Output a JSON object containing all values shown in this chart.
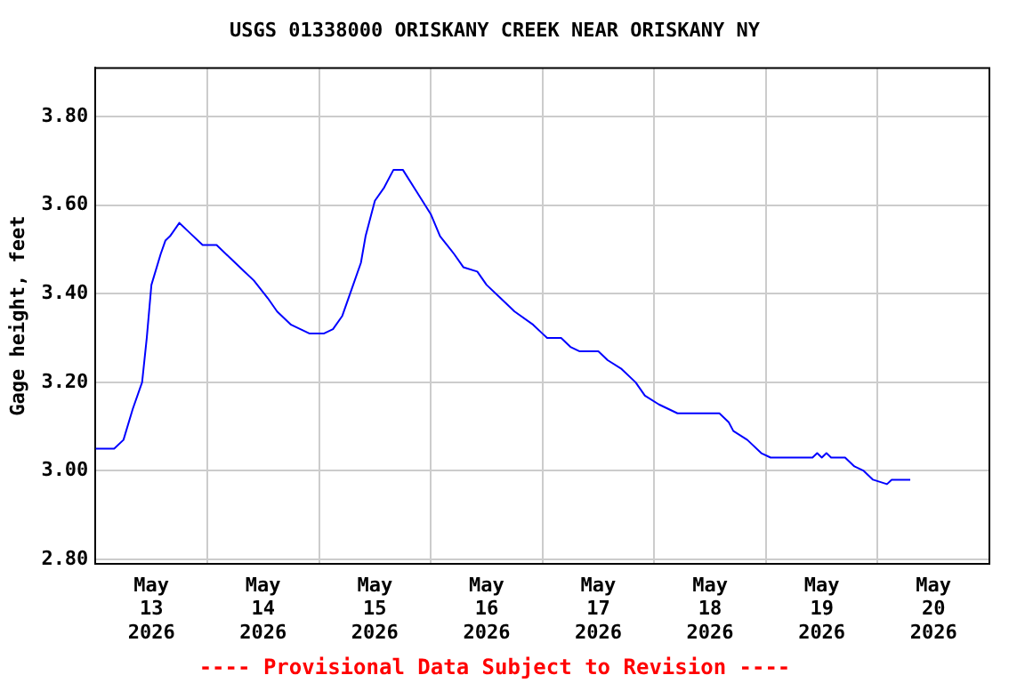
{
  "chart_data": {
    "type": "line",
    "title": "USGS 01338000 ORISKANY CREEK NEAR ORISKANY NY",
    "ylabel": "Gage height, feet",
    "annotations": [
      "---- Provisional Data Subject to Revision ----"
    ],
    "x": [
      "2026-05-13T00:00",
      "2026-05-13T04:00",
      "2026-05-13T06:00",
      "2026-05-13T08:00",
      "2026-05-13T10:00",
      "2026-05-13T11:00",
      "2026-05-13T12:00",
      "2026-05-13T14:00",
      "2026-05-13T15:00",
      "2026-05-13T16:00",
      "2026-05-13T18:00",
      "2026-05-13T20:00",
      "2026-05-13T23:00",
      "2026-05-14T02:00",
      "2026-05-14T05:00",
      "2026-05-14T08:00",
      "2026-05-14T10:00",
      "2026-05-14T13:00",
      "2026-05-14T15:00",
      "2026-05-14T18:00",
      "2026-05-14T20:00",
      "2026-05-14T22:00",
      "2026-05-15T01:00",
      "2026-05-15T03:00",
      "2026-05-15T05:00",
      "2026-05-15T07:00",
      "2026-05-15T09:00",
      "2026-05-15T10:00",
      "2026-05-15T12:00",
      "2026-05-15T14:00",
      "2026-05-15T16:00",
      "2026-05-15T18:00",
      "2026-05-15T21:00",
      "2026-05-16T00:00",
      "2026-05-16T02:00",
      "2026-05-16T05:00",
      "2026-05-16T07:00",
      "2026-05-16T10:00",
      "2026-05-16T12:00",
      "2026-05-16T15:00",
      "2026-05-16T18:00",
      "2026-05-16T22:00",
      "2026-05-17T00:00",
      "2026-05-17T01:00",
      "2026-05-17T04:00",
      "2026-05-17T06:00",
      "2026-05-17T08:00",
      "2026-05-17T12:00",
      "2026-05-17T14:00",
      "2026-05-17T17:00",
      "2026-05-17T20:00",
      "2026-05-17T22:00",
      "2026-05-18T01:00",
      "2026-05-18T03:00",
      "2026-05-18T05:00",
      "2026-05-18T14:00",
      "2026-05-18T16:00",
      "2026-05-18T17:00",
      "2026-05-18T20:00",
      "2026-05-18T23:00",
      "2026-05-19T01:00",
      "2026-05-19T10:00",
      "2026-05-19T11:00",
      "2026-05-19T12:00",
      "2026-05-19T13:00",
      "2026-05-19T14:00",
      "2026-05-19T17:00",
      "2026-05-19T19:00",
      "2026-05-19T21:00",
      "2026-05-19T23:00",
      "2026-05-20T02:00",
      "2026-05-20T03:00",
      "2026-05-20T07:00"
    ],
    "series": [
      {
        "color": "#0000ff",
        "values": [
          3.05,
          3.05,
          3.07,
          3.14,
          3.2,
          3.3,
          3.42,
          3.49,
          3.52,
          3.53,
          3.56,
          3.54,
          3.51,
          3.51,
          3.48,
          3.45,
          3.43,
          3.39,
          3.36,
          3.33,
          3.32,
          3.31,
          3.31,
          3.32,
          3.35,
          3.41,
          3.47,
          3.53,
          3.61,
          3.64,
          3.68,
          3.68,
          3.63,
          3.58,
          3.53,
          3.49,
          3.46,
          3.45,
          3.42,
          3.39,
          3.36,
          3.33,
          3.31,
          3.3,
          3.3,
          3.28,
          3.27,
          3.27,
          3.25,
          3.23,
          3.2,
          3.17,
          3.15,
          3.14,
          3.13,
          3.13,
          3.11,
          3.09,
          3.07,
          3.04,
          3.03,
          3.03,
          3.04,
          3.03,
          3.04,
          3.03,
          3.03,
          3.01,
          3.0,
          2.98,
          2.97,
          2.98,
          2.98
        ]
      }
    ],
    "xlim": [
      "2026-05-13T00:00",
      "2026-05-21T00:00"
    ],
    "xticks": [
      {
        "value": "2026-05-13T12:00",
        "label": "May 13 2026"
      },
      {
        "value": "2026-05-14T00:00",
        "label": null
      },
      {
        "value": "2026-05-14T12:00",
        "label": "May 14 2026"
      },
      {
        "value": "2026-05-15T00:00",
        "label": null
      },
      {
        "value": "2026-05-15T12:00",
        "label": "May 15 2026"
      },
      {
        "value": "2026-05-16T00:00",
        "label": null
      },
      {
        "value": "2026-05-16T12:00",
        "label": "May 16 2026"
      },
      {
        "value": "2026-05-17T00:00",
        "label": null
      },
      {
        "value": "2026-05-17T12:00",
        "label": "May 17 2026"
      },
      {
        "value": "2026-05-18T00:00",
        "label": null
      },
      {
        "value": "2026-05-18T12:00",
        "label": "May 18 2026"
      },
      {
        "value": "2026-05-19T00:00",
        "label": null
      },
      {
        "value": "2026-05-19T12:00",
        "label": "May 19 2026"
      },
      {
        "value": "2026-05-20T00:00",
        "label": null
      },
      {
        "value": "2026-05-20T12:00",
        "label": "May 20 2026"
      }
    ],
    "ylim": [
      2.79,
      3.91
    ],
    "yticks": [
      {
        "value": 2.8,
        "label": "2.80"
      },
      {
        "value": 3.0,
        "label": "3.00"
      },
      {
        "value": 3.2,
        "label": "3.20"
      },
      {
        "value": 3.4,
        "label": "3.40"
      },
      {
        "value": 3.6,
        "label": "3.60"
      },
      {
        "value": 3.8,
        "label": "3.80"
      }
    ],
    "grid": true,
    "legend": false,
    "marker": "none",
    "line_style": "solid"
  }
}
